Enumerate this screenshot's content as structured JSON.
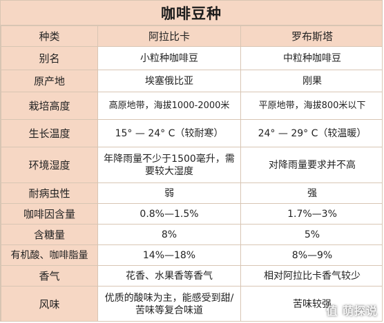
{
  "title": "咖啡豆种",
  "columns": [
    "种类",
    "阿拉比卡",
    "罗布斯塔"
  ],
  "rows": [
    {
      "label": "别名",
      "arabica": "小粒种咖啡豆",
      "robusta": "中粒种咖啡豆"
    },
    {
      "label": "原产地",
      "arabica": "埃塞俄比亚",
      "robusta": "刚果"
    },
    {
      "label": "栽培高度",
      "arabica": "高原地带，海拔1000-2000米",
      "robusta": "平原地带，海拔800米以下"
    },
    {
      "label": "生长温度",
      "arabica": "15° — 24° C（较耐寒）",
      "robusta": "24° — 29° C（较温暖）"
    },
    {
      "label": "环境湿度",
      "arabica": "年降雨量不少于1500毫升，需要较大湿度",
      "robusta": "对降雨量要求并不高"
    },
    {
      "label": "耐病虫性",
      "arabica": "弱",
      "robusta": "强"
    },
    {
      "label": "咖啡因含量",
      "arabica": "0.8%—1.5%",
      "robusta": "1.7%—3%"
    },
    {
      "label": "含糖量",
      "arabica": "8%",
      "robusta": "5%"
    },
    {
      "label": "有机酸、咖啡脂量",
      "arabica": "14%—18%",
      "robusta": "8%—9%"
    },
    {
      "label": "香气",
      "arabica": "花香、水果香等香气",
      "robusta": "相对阿拉比卡香气较少"
    },
    {
      "label": "风味",
      "arabica": "优质的酸味为主，能感受到甜/苦味等复合味道",
      "robusta": "苦味较强"
    }
  ],
  "watermark": "值 萌探说"
}
